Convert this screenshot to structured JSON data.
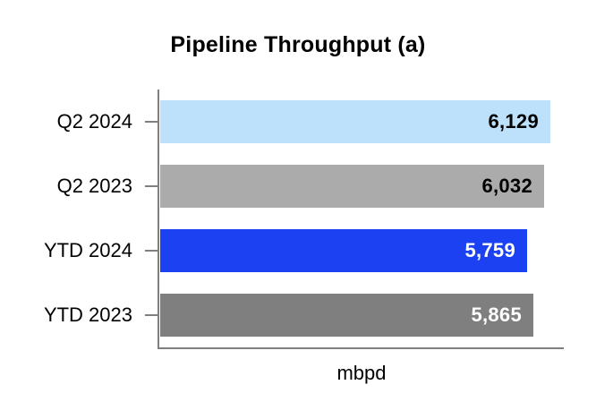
{
  "chart_data": {
    "type": "bar",
    "orientation": "horizontal",
    "title": "Pipeline Throughput (a)",
    "xlabel": "mbpd",
    "categories": [
      "Q2 2024",
      "Q2 2023",
      "YTD 2024",
      "YTD 2023"
    ],
    "values": [
      6129,
      6032,
      5759,
      5865
    ],
    "value_labels": [
      "6,129",
      "6,032",
      "5,759",
      "5,865"
    ],
    "xlim": [
      0,
      6350
    ],
    "bar_colors": [
      "#BDE1FB",
      "#ABABAB",
      "#1B41F2",
      "#7F7F7F"
    ],
    "value_label_colors": [
      "#000000",
      "#000000",
      "#FFFFFF",
      "#FFFFFF"
    ],
    "axis_color": "#808080",
    "grid": false,
    "legend": false
  }
}
